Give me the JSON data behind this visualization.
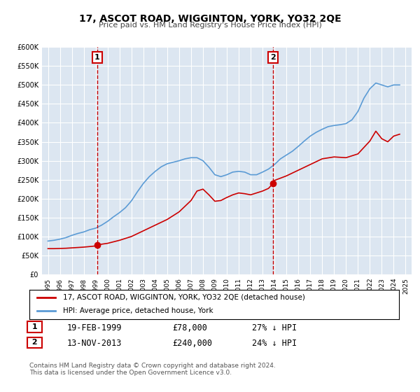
{
  "title": "17, ASCOT ROAD, WIGGINTON, YORK, YO32 2QE",
  "subtitle": "Price paid vs. HM Land Registry's House Price Index (HPI)",
  "ylim": [
    0,
    600000
  ],
  "yticks": [
    0,
    50000,
    100000,
    150000,
    200000,
    250000,
    300000,
    350000,
    400000,
    450000,
    500000,
    550000,
    600000
  ],
  "ytick_labels": [
    "£0",
    "£50K",
    "£100K",
    "£150K",
    "£200K",
    "£250K",
    "£300K",
    "£350K",
    "£400K",
    "£450K",
    "£500K",
    "£550K",
    "£600K"
  ],
  "xlim": [
    1994.5,
    2025.5
  ],
  "background_color": "#ffffff",
  "plot_bg_color": "#dce6f1",
  "grid_color": "#ffffff",
  "sale1_year": 1999.13,
  "sale1_price": 78000,
  "sale1_label": "1",
  "sale1_date": "19-FEB-1999",
  "sale1_pct": "27% ↓ HPI",
  "sale2_year": 2013.87,
  "sale2_price": 240000,
  "sale2_label": "2",
  "sale2_date": "13-NOV-2013",
  "sale2_pct": "24% ↓ HPI",
  "line1_color": "#cc0000",
  "line2_color": "#5b9bd5",
  "line1_label": "17, ASCOT ROAD, WIGGINTON, YORK, YO32 2QE (detached house)",
  "line2_label": "HPI: Average price, detached house, York",
  "vline_color": "#cc0000",
  "footer": "Contains HM Land Registry data © Crown copyright and database right 2024.\nThis data is licensed under the Open Government Licence v3.0.",
  "hpi_x": [
    1995,
    1995.5,
    1996,
    1996.5,
    1997,
    1997.5,
    1998,
    1998.5,
    1999,
    1999.5,
    2000,
    2000.5,
    2001,
    2001.5,
    2002,
    2002.5,
    2003,
    2003.5,
    2004,
    2004.5,
    2005,
    2005.5,
    2006,
    2006.5,
    2007,
    2007.5,
    2008,
    2008.5,
    2009,
    2009.5,
    2010,
    2010.5,
    2011,
    2011.5,
    2012,
    2012.5,
    2013,
    2013.5,
    2014,
    2014.5,
    2015,
    2015.5,
    2016,
    2016.5,
    2017,
    2017.5,
    2018,
    2018.5,
    2019,
    2019.5,
    2020,
    2020.5,
    2021,
    2021.5,
    2022,
    2022.5,
    2023,
    2023.5,
    2024,
    2024.5
  ],
  "hpi_y": [
    88000,
    90000,
    93000,
    97000,
    103000,
    108000,
    112000,
    118000,
    122000,
    130000,
    140000,
    152000,
    163000,
    176000,
    194000,
    218000,
    240000,
    258000,
    272000,
    284000,
    292000,
    296000,
    300000,
    305000,
    308000,
    308000,
    300000,
    283000,
    263000,
    258000,
    263000,
    270000,
    272000,
    270000,
    263000,
    263000,
    270000,
    278000,
    290000,
    305000,
    315000,
    325000,
    338000,
    352000,
    365000,
    375000,
    383000,
    390000,
    393000,
    395000,
    398000,
    408000,
    430000,
    465000,
    490000,
    505000,
    500000,
    495000,
    500000,
    500000
  ],
  "sale_x": [
    1995,
    1995.5,
    1996,
    1996.5,
    1997,
    1997.5,
    1998,
    1998.5,
    1999,
    1999.13,
    2000,
    2001,
    2002,
    2003,
    2004,
    2005,
    2006,
    2007,
    2007.5,
    2008,
    2008.5,
    2009,
    2009.5,
    2010,
    2010.5,
    2011,
    2011.5,
    2012,
    2012.5,
    2013,
    2013.5,
    2013.87,
    2014,
    2015,
    2016,
    2017,
    2018,
    2019,
    2020,
    2021,
    2022,
    2022.5,
    2023,
    2023.5,
    2024,
    2024.5
  ],
  "sale_y": [
    68000,
    68000,
    68500,
    69000,
    70000,
    71000,
    72000,
    73500,
    75000,
    78000,
    82000,
    90000,
    100000,
    115000,
    130000,
    145000,
    165000,
    195000,
    220000,
    225000,
    210000,
    193000,
    195000,
    203000,
    210000,
    215000,
    213000,
    210000,
    215000,
    220000,
    227000,
    240000,
    248000,
    260000,
    275000,
    290000,
    305000,
    310000,
    308000,
    318000,
    352000,
    378000,
    358000,
    350000,
    365000,
    370000
  ]
}
